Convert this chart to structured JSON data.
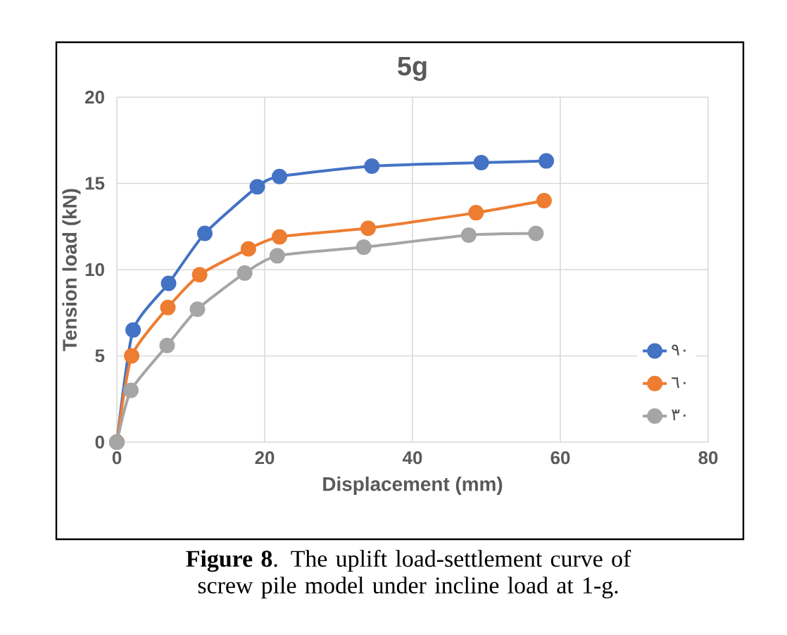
{
  "chart_data": {
    "type": "line",
    "title": "5g",
    "xlabel": "Displacement (mm)",
    "ylabel": "Tension load (kN)",
    "series": [
      {
        "name": "٩٠",
        "color": "#4472c4",
        "x": [
          0,
          2.2,
          7.0,
          11.9,
          19.0,
          22.0,
          34.5,
          49.3,
          58.1
        ],
        "values": [
          0,
          6.5,
          9.2,
          12.1,
          14.8,
          15.4,
          16.0,
          16.2,
          16.3
        ]
      },
      {
        "name": "٦٠",
        "color": "#ed7d31",
        "x": [
          0,
          2.0,
          6.9,
          11.2,
          17.8,
          22.0,
          34.0,
          48.6,
          57.8
        ],
        "values": [
          0,
          5.0,
          7.8,
          9.7,
          11.2,
          11.9,
          12.4,
          13.3,
          14.0
        ]
      },
      {
        "name": "٣٠",
        "color": "#a5a5a5",
        "x": [
          0,
          1.9,
          6.8,
          10.9,
          17.3,
          21.7,
          33.4,
          47.6,
          56.7
        ],
        "values": [
          0,
          3.0,
          5.6,
          7.7,
          9.8,
          10.8,
          11.3,
          12.0,
          12.1
        ]
      }
    ],
    "xlim": [
      0,
      80
    ],
    "xticks": [
      0,
      20,
      40,
      60,
      80
    ],
    "ylim": [
      0,
      20
    ],
    "yticks": [
      0,
      5,
      10,
      15,
      20
    ],
    "grid": true,
    "legend": "right",
    "marker": "circle",
    "line_style": "solid",
    "annotations": [
      "**Figure 8**. The uplift load-settlement curve of screw pile model under incline load at 1-g."
    ]
  }
}
